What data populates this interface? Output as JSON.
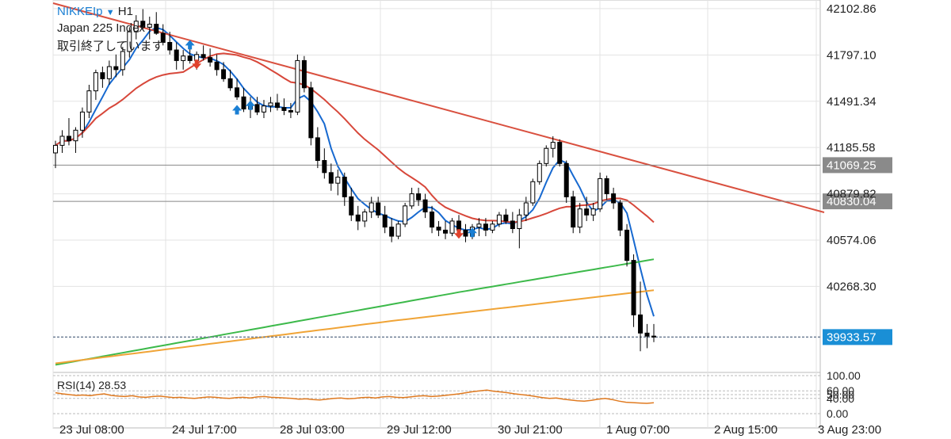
{
  "header": {
    "symbol": "NIKKEIp",
    "timeframe": "H1",
    "dropdown_icon": "caret-down-icon",
    "instrument_name": "Japan 225 Index",
    "market_status": "取引終了しています"
  },
  "colors": {
    "background": "#ffffff",
    "grid": "#e3e3e3",
    "candle": "#000000",
    "ma_fast": "#1769d0",
    "ma_mid": "#d7473a",
    "ma_slow": "#3cb94a",
    "ma_200": "#f0a437",
    "trendline": "#d9503f",
    "rsi": "#e07a20",
    "current_price": "#1a8fd6",
    "level_line": "#888888",
    "buy_arrow": "#1a7fd4",
    "sell_arrow": "#e0412b"
  },
  "chart_data": {
    "type": "candlestick",
    "title": "NIKKEIp H1",
    "y_ticks": [
      "42102.86",
      "41797.10",
      "41491.34",
      "41185.58",
      "40879.82",
      "40574.06",
      "40268.30"
    ],
    "ylim": [
      39700,
      42160
    ],
    "x_ticks": [
      "23 Jul 08:00",
      "24 Jul 17:00",
      "28 Jul 03:00",
      "29 Jul 12:00",
      "30 Jul 21:00",
      "1 Aug 07:00",
      "2 Aug 15:00",
      "3 Aug 23:00"
    ],
    "price_tags": [
      {
        "label": "41069.25",
        "value": 41069.25,
        "style": "level"
      },
      {
        "label": "40830.04",
        "value": 40830.04,
        "style": "level"
      },
      {
        "label": "39933.57",
        "value": 39933.57,
        "style": "current"
      }
    ],
    "candles": [
      [
        41150,
        41230,
        41050,
        41200
      ],
      [
        41200,
        41300,
        41150,
        41260
      ],
      [
        41260,
        41380,
        41200,
        41230
      ],
      [
        41230,
        41320,
        41150,
        41300
      ],
      [
        41300,
        41450,
        41250,
        41420
      ],
      [
        41420,
        41600,
        41380,
        41560
      ],
      [
        41560,
        41700,
        41500,
        41680
      ],
      [
        41680,
        41720,
        41580,
        41640
      ],
      [
        41640,
        41760,
        41600,
        41720
      ],
      [
        41720,
        41800,
        41650,
        41700
      ],
      [
        41700,
        41850,
        41660,
        41820
      ],
      [
        41820,
        41980,
        41780,
        41950
      ],
      [
        41950,
        42060,
        41900,
        42020
      ],
      [
        42020,
        42100,
        41960,
        41980
      ],
      [
        41980,
        42050,
        41900,
        42000
      ],
      [
        42000,
        42080,
        41930,
        41940
      ],
      [
        41940,
        42000,
        41860,
        41880
      ],
      [
        41880,
        41950,
        41800,
        41830
      ],
      [
        41830,
        41880,
        41700,
        41760
      ],
      [
        41760,
        41830,
        41700,
        41790
      ],
      [
        41790,
        41850,
        41740,
        41760
      ],
      [
        41760,
        41820,
        41700,
        41800
      ],
      [
        41800,
        41860,
        41760,
        41780
      ],
      [
        41780,
        41840,
        41720,
        41750
      ],
      [
        41750,
        41800,
        41660,
        41700
      ],
      [
        41700,
        41750,
        41620,
        41640
      ],
      [
        41640,
        41700,
        41560,
        41580
      ],
      [
        41580,
        41640,
        41500,
        41520
      ],
      [
        41520,
        41580,
        41420,
        41440
      ],
      [
        41440,
        41520,
        41380,
        41470
      ],
      [
        41470,
        41520,
        41400,
        41420
      ],
      [
        41420,
        41500,
        41380,
        41460
      ],
      [
        41460,
        41520,
        41420,
        41480
      ],
      [
        41480,
        41540,
        41430,
        41450
      ],
      [
        41450,
        41510,
        41400,
        41430
      ],
      [
        41430,
        41480,
        41380,
        41420
      ],
      [
        41420,
        41800,
        41400,
        41760
      ],
      [
        41760,
        41790,
        41550,
        41580
      ],
      [
        41580,
        41620,
        41200,
        41250
      ],
      [
        41250,
        41320,
        41050,
        41100
      ],
      [
        41100,
        41180,
        40980,
        41020
      ],
      [
        41020,
        41080,
        40900,
        40950
      ],
      [
        40950,
        41040,
        40870,
        40990
      ],
      [
        40990,
        41020,
        40800,
        40860
      ],
      [
        40860,
        40920,
        40700,
        40740
      ],
      [
        40740,
        40800,
        40640,
        40700
      ],
      [
        40700,
        40780,
        40660,
        40760
      ],
      [
        40760,
        40860,
        40720,
        40820
      ],
      [
        40820,
        40860,
        40720,
        40740
      ],
      [
        40740,
        40800,
        40620,
        40660
      ],
      [
        40660,
        40720,
        40560,
        40600
      ],
      [
        40600,
        40700,
        40580,
        40680
      ],
      [
        40680,
        40820,
        40660,
        40800
      ],
      [
        40800,
        40920,
        40780,
        40880
      ],
      [
        40880,
        40920,
        40800,
        40840
      ],
      [
        40840,
        40880,
        40720,
        40760
      ],
      [
        40760,
        40800,
        40620,
        40660
      ],
      [
        40660,
        40700,
        40600,
        40640
      ],
      [
        40640,
        40700,
        40580,
        40620
      ],
      [
        40620,
        40720,
        40600,
        40700
      ],
      [
        40700,
        40740,
        40600,
        40640
      ],
      [
        40640,
        40680,
        40560,
        40600
      ],
      [
        40600,
        40680,
        40580,
        40660
      ],
      [
        40660,
        40720,
        40600,
        40680
      ],
      [
        40680,
        40720,
        40600,
        40640
      ],
      [
        40640,
        40700,
        40620,
        40680
      ],
      [
        40680,
        40760,
        40660,
        40740
      ],
      [
        40740,
        40780,
        40680,
        40700
      ],
      [
        40700,
        40760,
        40620,
        40650
      ],
      [
        40650,
        40780,
        40520,
        40740
      ],
      [
        40740,
        40860,
        40700,
        40820
      ],
      [
        40820,
        40980,
        40800,
        40960
      ],
      [
        40960,
        41100,
        40940,
        41080
      ],
      [
        41080,
        41200,
        41060,
        41180
      ],
      [
        41180,
        41260,
        41120,
        41220
      ],
      [
        41220,
        41240,
        41060,
        41080
      ],
      [
        41080,
        41100,
        40820,
        40860
      ],
      [
        40860,
        40900,
        40620,
        40660
      ],
      [
        40660,
        40820,
        40620,
        40780
      ],
      [
        40780,
        40860,
        40700,
        40740
      ],
      [
        40740,
        40820,
        40700,
        40780
      ],
      [
        40780,
        41020,
        40760,
        40980
      ],
      [
        40980,
        41000,
        40840,
        40880
      ],
      [
        40880,
        40920,
        40780,
        40820
      ],
      [
        40820,
        40840,
        40600,
        40640
      ],
      [
        40640,
        40680,
        40400,
        40440
      ],
      [
        40440,
        40480,
        40000,
        40080
      ],
      [
        40080,
        40300,
        39840,
        39960
      ],
      [
        39960,
        40020,
        39860,
        39940
      ],
      [
        39940,
        40020,
        39900,
        39934
      ]
    ]
  },
  "rsi_panel": {
    "label": "RSI(14) 28.53",
    "levels": [
      "100.00",
      "60.00",
      "50.00",
      "40.00",
      "0.00"
    ],
    "ylim": [
      0,
      100
    ],
    "values": [
      55,
      52,
      50,
      48,
      49,
      47,
      50,
      52,
      48,
      46,
      45,
      47,
      44,
      43,
      45,
      46,
      44,
      42,
      43,
      41,
      40,
      42,
      44,
      43,
      41,
      40,
      42,
      43,
      41,
      44,
      45,
      43,
      42,
      41,
      40,
      38,
      39,
      37,
      36,
      38,
      40,
      41,
      39,
      40,
      42,
      43,
      41,
      44,
      45,
      43,
      42,
      44,
      46,
      47,
      45,
      46,
      48,
      50,
      52,
      55,
      58,
      60,
      62,
      59,
      57,
      55,
      52,
      50,
      48,
      45,
      42,
      40,
      41,
      38,
      36,
      34,
      33,
      35,
      38,
      40,
      37,
      33,
      30,
      29,
      28,
      27,
      28.53
    ]
  }
}
